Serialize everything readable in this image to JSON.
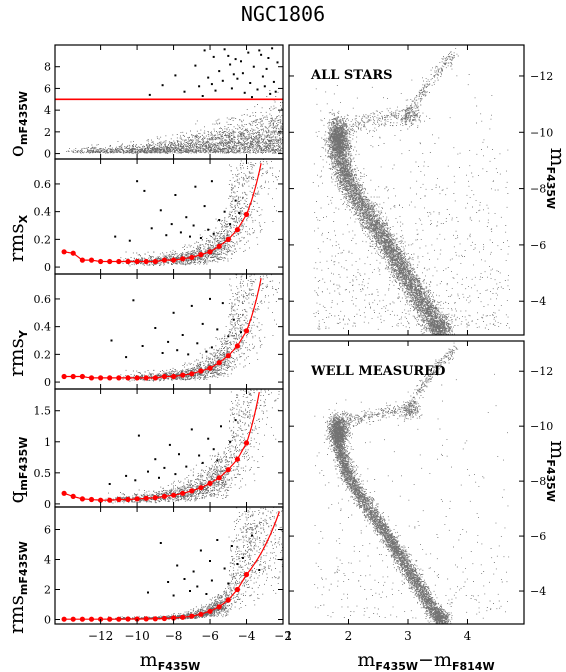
{
  "figure": {
    "title": "NGC1806",
    "colors": {
      "frame": "#000000",
      "points": "#000000",
      "threshold": "#ff0000",
      "fit": "#ff0000"
    }
  },
  "chart_data": [
    {
      "type": "scatter",
      "panel": "o_mF435W",
      "ylabel": "o_mF435W",
      "xlim": [
        -14.5,
        -2
      ],
      "ylim": [
        -0.5,
        10
      ],
      "yticks": [
        0,
        2,
        4,
        6,
        8
      ],
      "threshold_line": 5,
      "outliers": [
        [
          -6.3,
          9.5
        ],
        [
          -5.8,
          8.9
        ],
        [
          -5.2,
          9.6
        ],
        [
          -4.6,
          8.7
        ],
        [
          -3.9,
          9.3
        ],
        [
          -3.2,
          9.1
        ],
        [
          -2.6,
          9.7
        ],
        [
          -6.8,
          8.1
        ],
        [
          -5.5,
          7.6
        ],
        [
          -4.9,
          8.2
        ],
        [
          -4.2,
          7.4
        ],
        [
          -3.6,
          8.0
        ],
        [
          -2.9,
          7.8
        ],
        [
          -2.3,
          8.4
        ],
        [
          -6.1,
          7.0
        ],
        [
          -5.3,
          6.7
        ],
        [
          -4.5,
          6.9
        ],
        [
          -3.8,
          6.5
        ],
        [
          -3.1,
          7.1
        ],
        [
          -2.5,
          6.6
        ],
        [
          -6.6,
          6.2
        ],
        [
          -5.7,
          5.8
        ],
        [
          -4.8,
          6.0
        ],
        [
          -4.1,
          5.6
        ],
        [
          -3.4,
          5.9
        ],
        [
          -2.7,
          5.5
        ],
        [
          -7.4,
          5.7
        ],
        [
          -8.6,
          6.3
        ],
        [
          -9.3,
          5.4
        ],
        [
          -7.9,
          7.2
        ],
        [
          -5.0,
          9.0
        ],
        [
          -4.3,
          8.5
        ],
        [
          -3.3,
          9.5
        ],
        [
          -2.8,
          8.8
        ],
        [
          -6.4,
          5.3
        ],
        [
          -3.7,
          5.2
        ],
        [
          -2.4,
          5.7
        ],
        [
          -5.9,
          6.4
        ],
        [
          -4.7,
          7.3
        ],
        [
          -3.0,
          6.2
        ]
      ],
      "cloud": {
        "x_range": [
          -14,
          -2
        ],
        "y_base": 0.3,
        "y_growth": "increases toward faint magnitudes, reaching ~4"
      }
    },
    {
      "type": "scatter",
      "panel": "rms_X",
      "ylabel": "rms_X",
      "xlim": [
        -14.5,
        -2
      ],
      "ylim": [
        -0.05,
        0.78
      ],
      "yticks": [
        0,
        0.2,
        0.4,
        0.6
      ],
      "fit": {
        "x": [
          -14.0,
          -13.5,
          -13.0,
          -12.5,
          -12.0,
          -11.5,
          -11.0,
          -10.5,
          -10.0,
          -9.5,
          -9.0,
          -8.5,
          -8.0,
          -7.5,
          -7.0,
          -6.5,
          -6.0,
          -5.5,
          -5.0,
          -4.5,
          -4.0
        ],
        "y": [
          0.11,
          0.1,
          0.05,
          0.05,
          0.04,
          0.04,
          0.04,
          0.04,
          0.04,
          0.04,
          0.04,
          0.05,
          0.05,
          0.06,
          0.07,
          0.09,
          0.11,
          0.15,
          0.2,
          0.27,
          0.38
        ],
        "curve_extends_to": [
          -3.2,
          0.75
        ]
      },
      "outliers": [
        [
          -10.0,
          0.62
        ],
        [
          -9.6,
          0.55
        ],
        [
          -7.9,
          0.52
        ],
        [
          -6.8,
          0.58
        ],
        [
          -5.9,
          0.62
        ],
        [
          -8.7,
          0.41
        ],
        [
          -7.3,
          0.36
        ],
        [
          -6.3,
          0.44
        ],
        [
          -5.2,
          0.4
        ],
        [
          -4.6,
          0.48
        ],
        [
          -9.2,
          0.28
        ],
        [
          -8.1,
          0.31
        ],
        [
          -7.6,
          0.25
        ],
        [
          -6.9,
          0.3
        ],
        [
          -6.1,
          0.27
        ],
        [
          -5.5,
          0.34
        ],
        [
          -4.9,
          0.31
        ],
        [
          -11.2,
          0.22
        ],
        [
          -10.4,
          0.19
        ],
        [
          -7.1,
          0.22
        ],
        [
          -6.5,
          0.21
        ],
        [
          -5.8,
          0.24
        ],
        [
          -4.4,
          0.39
        ],
        [
          -8.4,
          0.23
        ]
      ],
      "cloud": {
        "x_range": [
          -11,
          -2
        ],
        "y_base": 0.02,
        "y_growth": "rises steeply beyond m=-4, saturating the panel"
      }
    },
    {
      "type": "scatter",
      "panel": "rms_Y",
      "ylabel": "rms_Y",
      "xlim": [
        -14.5,
        -2
      ],
      "ylim": [
        -0.05,
        0.78
      ],
      "yticks": [
        0,
        0.2,
        0.4,
        0.6
      ],
      "fit": {
        "x": [
          -14.0,
          -13.5,
          -13.0,
          -12.5,
          -12.0,
          -11.5,
          -11.0,
          -10.5,
          -10.0,
          -9.5,
          -9.0,
          -8.5,
          -8.0,
          -7.5,
          -7.0,
          -6.5,
          -6.0,
          -5.5,
          -5.0,
          -4.5,
          -4.0
        ],
        "y": [
          0.04,
          0.04,
          0.04,
          0.03,
          0.03,
          0.03,
          0.03,
          0.03,
          0.03,
          0.03,
          0.03,
          0.04,
          0.04,
          0.05,
          0.06,
          0.08,
          0.1,
          0.14,
          0.19,
          0.26,
          0.37
        ],
        "curve_extends_to": [
          -3.2,
          0.75
        ]
      },
      "outliers": [
        [
          -10.2,
          0.59
        ],
        [
          -8.0,
          0.5
        ],
        [
          -7.0,
          0.55
        ],
        [
          -6.0,
          0.6
        ],
        [
          -5.3,
          0.57
        ],
        [
          -9.0,
          0.39
        ],
        [
          -7.5,
          0.34
        ],
        [
          -6.4,
          0.42
        ],
        [
          -5.6,
          0.38
        ],
        [
          -4.7,
          0.45
        ],
        [
          -11.4,
          0.3
        ],
        [
          -9.7,
          0.26
        ],
        [
          -8.3,
          0.29
        ],
        [
          -7.8,
          0.23
        ],
        [
          -6.7,
          0.28
        ],
        [
          -5.9,
          0.25
        ],
        [
          -5.0,
          0.33
        ],
        [
          -10.6,
          0.18
        ],
        [
          -7.2,
          0.2
        ],
        [
          -6.2,
          0.22
        ],
        [
          -4.3,
          0.36
        ],
        [
          -8.6,
          0.21
        ]
      ],
      "cloud": {
        "x_range": [
          -11,
          -2
        ],
        "y_base": 0.02,
        "y_growth": "rises steeply beyond m=-4, saturating the panel"
      }
    },
    {
      "type": "scatter",
      "panel": "q_mF435W",
      "ylabel": "q_mF435W",
      "xlim": [
        -14.5,
        -2
      ],
      "ylim": [
        -0.05,
        1.85
      ],
      "yticks": [
        0,
        0.5,
        1,
        1.5
      ],
      "fit": {
        "x": [
          -14.0,
          -13.5,
          -13.0,
          -12.5,
          -12.0,
          -11.5,
          -11.0,
          -10.5,
          -10.0,
          -9.5,
          -9.0,
          -8.5,
          -8.0,
          -7.5,
          -7.0,
          -6.5,
          -6.0,
          -5.5,
          -5.0,
          -4.5,
          -4.0
        ],
        "y": [
          0.17,
          0.12,
          0.08,
          0.07,
          0.06,
          0.06,
          0.07,
          0.07,
          0.08,
          0.09,
          0.1,
          0.12,
          0.14,
          0.17,
          0.21,
          0.26,
          0.33,
          0.42,
          0.55,
          0.72,
          0.98
        ],
        "curve_extends_to": [
          -3.3,
          1.8
        ]
      },
      "outliers": [
        [
          -9.9,
          1.1
        ],
        [
          -8.2,
          0.95
        ],
        [
          -7.0,
          1.2
        ],
        [
          -6.1,
          1.05
        ],
        [
          -5.4,
          1.25
        ],
        [
          -9.0,
          0.72
        ],
        [
          -7.7,
          0.8
        ],
        [
          -6.6,
          0.78
        ],
        [
          -5.8,
          0.88
        ],
        [
          -4.9,
          1.0
        ],
        [
          -10.6,
          0.45
        ],
        [
          -9.4,
          0.52
        ],
        [
          -8.5,
          0.58
        ],
        [
          -7.3,
          0.6
        ],
        [
          -6.4,
          0.66
        ],
        [
          -5.6,
          0.7
        ],
        [
          -11.5,
          0.32
        ],
        [
          -10.1,
          0.38
        ],
        [
          -8.8,
          0.42
        ],
        [
          -7.9,
          0.48
        ],
        [
          -4.6,
          1.35
        ]
      ],
      "cloud": {
        "x_range": [
          -12,
          -2
        ],
        "y_base": 0.05,
        "y_growth": "rises steeply beyond m=-4, saturating the panel"
      }
    },
    {
      "type": "scatter",
      "panel": "rms_mF435W",
      "ylabel": "rms_mF435W",
      "xlabel": "m_F435W",
      "xlim": [
        -14.5,
        -2
      ],
      "ylim": [
        -0.3,
        7.5
      ],
      "yticks": [
        0,
        2,
        4,
        6
      ],
      "xticks": [
        -12,
        -10,
        -8,
        -6,
        -4,
        -2
      ],
      "fit": {
        "x": [
          -14.0,
          -13.5,
          -13.0,
          -12.5,
          -12.0,
          -11.5,
          -11.0,
          -10.5,
          -10.0,
          -9.5,
          -9.0,
          -8.5,
          -8.0,
          -7.5,
          -7.0,
          -6.5,
          -6.0,
          -5.5,
          -5.0,
          -4.5,
          -4.0
        ],
        "y": [
          0.02,
          0.02,
          0.02,
          0.02,
          0.02,
          0.02,
          0.02,
          0.03,
          0.03,
          0.04,
          0.05,
          0.07,
          0.1,
          0.15,
          0.22,
          0.35,
          0.55,
          0.85,
          1.3,
          2.0,
          3.0
        ],
        "curve_extends_to": [
          -2.2,
          7.2
        ]
      },
      "outliers": [
        [
          -8.7,
          5.1
        ],
        [
          -6.5,
          4.6
        ],
        [
          -5.6,
          5.3
        ],
        [
          -4.8,
          4.9
        ],
        [
          -7.8,
          3.6
        ],
        [
          -6.9,
          3.2
        ],
        [
          -6.0,
          3.9
        ],
        [
          -5.2,
          3.4
        ],
        [
          -4.5,
          3.7
        ],
        [
          -8.3,
          2.5
        ],
        [
          -7.4,
          2.7
        ],
        [
          -6.7,
          2.2
        ],
        [
          -5.9,
          2.6
        ],
        [
          -5.0,
          2.4
        ],
        [
          -9.4,
          1.8
        ],
        [
          -8.0,
          1.6
        ],
        [
          -7.1,
          1.9
        ],
        [
          -6.2,
          1.7
        ],
        [
          -4.2,
          4.1
        ],
        [
          -3.7,
          5.6
        ],
        [
          -3.3,
          3.3
        ]
      ],
      "cloud": {
        "x_range": [
          -12,
          -2
        ],
        "y_base": 0.05,
        "y_growth": "rises steeply beyond m=-4, saturating the panel"
      }
    },
    {
      "type": "scatter",
      "panel": "cmd-all",
      "label": "ALL STARS",
      "ylabel": "m_F435W",
      "xlim": [
        1,
        4.95
      ],
      "ylim": [
        -2.8,
        -13.1
      ],
      "yticks": [
        -12,
        -10,
        -8,
        -6,
        -4
      ],
      "cmd_sequences": {
        "main_sequence": {
          "points": [
            [
              1.8,
              -9.8
            ],
            [
              1.85,
              -9.2
            ],
            [
              1.95,
              -8.4
            ],
            [
              2.15,
              -7.6
            ],
            [
              2.4,
              -6.8
            ],
            [
              2.65,
              -6.0
            ],
            [
              2.85,
              -5.3
            ],
            [
              3.05,
              -4.6
            ],
            [
              3.25,
              -3.9
            ],
            [
              3.45,
              -3.2
            ],
            [
              3.6,
              -2.9
            ]
          ],
          "width": 0.09
        },
        "turnoff": {
          "center": [
            1.82,
            -9.9
          ],
          "spread": 0.3
        },
        "subgiant_branch": {
          "points": [
            [
              1.9,
              -10.1
            ],
            [
              2.2,
              -10.3
            ],
            [
              2.55,
              -10.5
            ],
            [
              2.85,
              -10.6
            ]
          ],
          "width": 0.07
        },
        "red_clump": {
          "center": [
            3.05,
            -10.6
          ],
          "spread": 0.08
        },
        "red_giant_branch": {
          "points": [
            [
              2.9,
              -10.3
            ],
            [
              3.15,
              -11.2
            ],
            [
              3.35,
              -11.8
            ],
            [
              3.6,
              -12.4
            ],
            [
              3.8,
              -12.8
            ]
          ],
          "width": 0.05
        }
      }
    },
    {
      "type": "scatter",
      "panel": "cmd-well",
      "label": "WELL MEASURED",
      "ylabel": "m_F435W",
      "xlabel": "m_F435W - m_F814W",
      "xlim": [
        1,
        4.95
      ],
      "ylim": [
        -2.8,
        -13.1
      ],
      "xticks": [
        1,
        2,
        3,
        4
      ],
      "yticks": [
        -12,
        -10,
        -8,
        -6,
        -4
      ],
      "cmd_sequences": {
        "main_sequence": {
          "points": [
            [
              1.8,
              -9.8
            ],
            [
              1.85,
              -9.2
            ],
            [
              1.95,
              -8.4
            ],
            [
              2.15,
              -7.6
            ],
            [
              2.4,
              -6.8
            ],
            [
              2.65,
              -6.0
            ],
            [
              2.85,
              -5.3
            ],
            [
              3.05,
              -4.6
            ],
            [
              3.25,
              -3.9
            ],
            [
              3.45,
              -3.2
            ],
            [
              3.6,
              -2.9
            ]
          ],
          "width": 0.06
        },
        "turnoff": {
          "center": [
            1.82,
            -9.9
          ],
          "spread": 0.25
        },
        "subgiant_branch": {
          "points": [
            [
              1.9,
              -10.1
            ],
            [
              2.2,
              -10.3
            ],
            [
              2.55,
              -10.5
            ],
            [
              2.85,
              -10.6
            ]
          ],
          "width": 0.05
        },
        "red_clump": {
          "center": [
            3.05,
            -10.6
          ],
          "spread": 0.07
        },
        "red_giant_branch": {
          "points": [
            [
              2.9,
              -10.3
            ],
            [
              3.15,
              -11.2
            ],
            [
              3.35,
              -11.8
            ],
            [
              3.6,
              -12.4
            ],
            [
              3.8,
              -12.8
            ]
          ],
          "width": 0.04
        }
      }
    }
  ],
  "labels": {
    "left_ylabels": [
      {
        "main": "o",
        "sub": "mF435W"
      },
      {
        "main": "rms",
        "sub": "X"
      },
      {
        "main": "rms",
        "sub": "Y"
      },
      {
        "main": "q",
        "sub": "mF435W"
      },
      {
        "main": "rms",
        "sub": "mF435W"
      }
    ],
    "left_xlabel": {
      "main": "m",
      "sub": "F435W"
    },
    "right_xlabel": {
      "main1": "m",
      "sub1": "F435W",
      "sep": "−",
      "main2": "m",
      "sub2": "F814W"
    },
    "right_ylabel": {
      "main": "m",
      "sub": "F435W"
    },
    "panel_texts": [
      "ALL STARS",
      "WELL MEASURED"
    ]
  }
}
